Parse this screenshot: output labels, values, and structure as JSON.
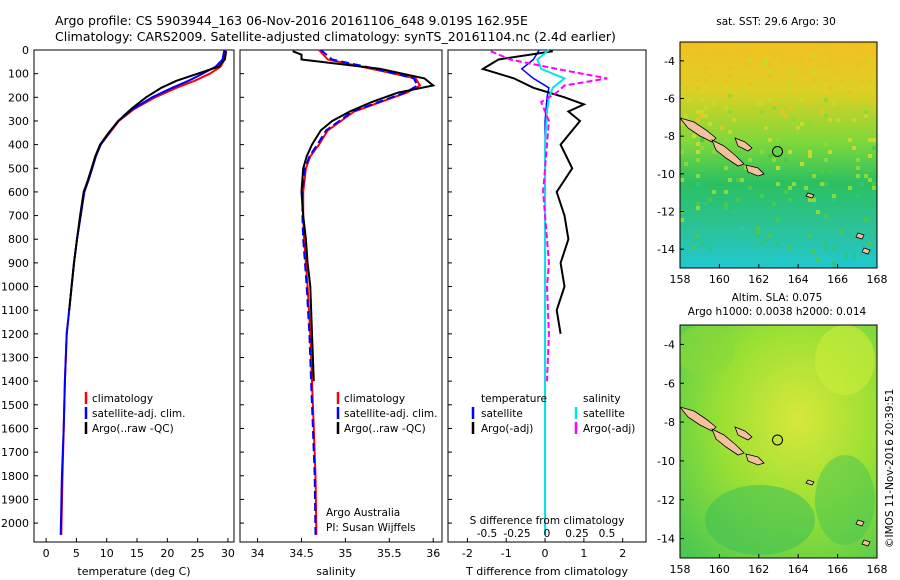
{
  "header": {
    "line1": "Argo profile: CS 5903944_163 06-Nov-2016 20161106_648 9.019S 162.95E",
    "line2": "Climatology: CARS2009. Satellite-adjusted climatology: synTS_20161104.nc (2.4d earlier)"
  },
  "colors": {
    "climatology": "#ff0000",
    "satellite": "#0000ff",
    "argo": "#000000",
    "sat_salinity": "#00e5e5",
    "argo_salinity": "#ff00ff",
    "land": "#f4c0a0"
  },
  "chart_data": [
    {
      "type": "line",
      "panel": "temperature",
      "xlabel": "temperature (deg C)",
      "ylabel": "",
      "xlim": [
        -2,
        31
      ],
      "ylim": [
        2080,
        0
      ],
      "xticks": [
        "0",
        "5",
        "10",
        "15",
        "20",
        "25",
        "30"
      ],
      "yticks": [
        "0",
        "100",
        "200",
        "300",
        "400",
        "500",
        "600",
        "700",
        "800",
        "900",
        "1000",
        "1100",
        "1200",
        "1300",
        "1400",
        "1500",
        "1600",
        "1700",
        "1800",
        "1900",
        "2000"
      ],
      "legend": [
        "climatology",
        "satellite-adj. clim.",
        "Argo(..raw -QC)"
      ],
      "series": [
        {
          "name": "climatology",
          "x": [
            29.6,
            29.4,
            28.8,
            27,
            24.5,
            21.5,
            18,
            14.5,
            12,
            10.5,
            9,
            8.2,
            7.6,
            7,
            6.3,
            5.7,
            5.1,
            4.6,
            4.2,
            3.8,
            3.4,
            3.1,
            2.9,
            2.7,
            2.5
          ],
          "y": [
            0,
            40,
            70,
            100,
            130,
            160,
            200,
            250,
            300,
            350,
            400,
            450,
            500,
            550,
            600,
            700,
            800,
            900,
            1000,
            1100,
            1200,
            1400,
            1600,
            1800,
            2050
          ]
        },
        {
          "name": "satellite-adj. clim.",
          "x": [
            29.4,
            29.1,
            28,
            25.8,
            23.5,
            20.8,
            17.5,
            14.3,
            11.9,
            10.4,
            9,
            8.2,
            7.6,
            7,
            6.3,
            5.7,
            5.1,
            4.6,
            4.2,
            3.8,
            3.4,
            3.1,
            2.9,
            2.6,
            2.4
          ],
          "y": [
            0,
            40,
            70,
            100,
            130,
            160,
            200,
            250,
            300,
            350,
            400,
            450,
            500,
            550,
            600,
            700,
            800,
            900,
            1000,
            1100,
            1200,
            1400,
            1600,
            1800,
            2050
          ]
        },
        {
          "name": "Argo(..raw -QC)",
          "x": [
            29.7,
            29.5,
            28.5,
            25,
            21.5,
            19,
            16.5,
            14,
            11.9,
            10.3,
            8.9,
            8.1,
            7.5,
            6.9,
            6.2,
            5.6,
            5.1,
            4.6,
            4.2,
            3.8
          ],
          "y": [
            5,
            40,
            70,
            100,
            130,
            160,
            200,
            250,
            300,
            350,
            400,
            450,
            500,
            550,
            600,
            700,
            800,
            900,
            1000,
            1100
          ]
        }
      ]
    },
    {
      "type": "line",
      "panel": "salinity",
      "xlabel": "salinity",
      "ylabel": "",
      "xlim": [
        33.8,
        36.1
      ],
      "ylim": [
        2080,
        0
      ],
      "xticks": [
        "34",
        "34.5",
        "35",
        "35.5",
        "36"
      ],
      "legend": [
        "climatology",
        "satellite-adj. clim.",
        "Argo(..raw -QC)"
      ],
      "annotation": [
        "Argo Australia",
        "PI: Susan Wijffels"
      ],
      "series": [
        {
          "name": "climatology",
          "x": [
            34.7,
            34.8,
            35.3,
            35.8,
            35.85,
            35.7,
            35.4,
            35.1,
            34.95,
            34.8,
            34.7,
            34.6,
            34.55,
            34.52,
            34.52,
            34.53,
            34.55,
            34.57,
            34.6,
            34.62,
            34.64,
            34.66,
            34.67
          ],
          "y": [
            0,
            40,
            80,
            120,
            150,
            180,
            220,
            260,
            300,
            340,
            400,
            450,
            500,
            600,
            700,
            800,
            900,
            1000,
            1200,
            1400,
            1600,
            1800,
            2050
          ]
        },
        {
          "name": "satellite-adj. clim.",
          "x": [
            34.72,
            34.85,
            35.35,
            35.78,
            35.82,
            35.68,
            35.38,
            35.08,
            34.93,
            34.78,
            34.68,
            34.59,
            34.54,
            34.51,
            34.51,
            34.52,
            34.54,
            34.56,
            34.59,
            34.61,
            34.63,
            34.65,
            34.66
          ],
          "y": [
            0,
            40,
            80,
            120,
            150,
            180,
            220,
            260,
            300,
            340,
            400,
            450,
            500,
            600,
            700,
            800,
            900,
            1000,
            1200,
            1400,
            1600,
            1800,
            2050
          ]
        },
        {
          "name": "Argo(..raw -QC)",
          "x": [
            34.4,
            34.5,
            34.5,
            35.4,
            35.9,
            36.0,
            35.6,
            35.3,
            35.05,
            34.85,
            34.72,
            34.62,
            34.56,
            34.52,
            34.5,
            34.52,
            34.55,
            34.57,
            34.6,
            34.62,
            34.64
          ],
          "y": [
            5,
            20,
            40,
            80,
            120,
            150,
            180,
            220,
            260,
            300,
            340,
            400,
            450,
            500,
            600,
            700,
            800,
            900,
            1000,
            1200,
            1400
          ]
        }
      ]
    },
    {
      "type": "line",
      "panel": "difference",
      "xlabel": "T difference from climatology",
      "xlabel_top": "S difference from climatology",
      "xlim": [
        -2.5,
        2.6
      ],
      "ylim": [
        2080,
        0
      ],
      "xticks": [
        "-2",
        "-1",
        "0",
        "1",
        "2"
      ],
      "xticks_top": [
        "-0.5",
        "-0.25",
        "0",
        "0.25",
        "0.5"
      ],
      "legend_left_title": "temperature",
      "legend_right_title": "salinity",
      "legend": [
        "satellite",
        "Argo(-adj)",
        "satellite",
        "Argo(-adj)"
      ],
      "series": [
        {
          "name": "temperature satellite",
          "x": [
            -0.15,
            -0.3,
            -0.6,
            -0.3,
            0.1,
            0.05,
            0,
            0,
            0,
            0,
            0
          ],
          "y": [
            0,
            40,
            80,
            120,
            160,
            200,
            300,
            500,
            1000,
            1500,
            2050
          ]
        },
        {
          "name": "temperature Argo(-adj)",
          "x": [
            0.2,
            -1.2,
            -1.6,
            -0.8,
            -0.3,
            0.5,
            1.0,
            0.6,
            0.9,
            0.4,
            0.7,
            0.3,
            0.5,
            0.6,
            0.4,
            0.5,
            0.3,
            0.4
          ],
          "y": [
            5,
            40,
            80,
            120,
            160,
            200,
            230,
            260,
            300,
            400,
            500,
            600,
            700,
            800,
            900,
            1000,
            1100,
            1200
          ]
        },
        {
          "name": "salinity satellite",
          "x": [
            0.1,
            -0.2,
            -0.1,
            0.5,
            0.2,
            0.1,
            0.05,
            0,
            0,
            0,
            0
          ],
          "y": [
            0,
            40,
            80,
            120,
            160,
            200,
            260,
            400,
            800,
            1400,
            2050
          ]
        },
        {
          "name": "salinity Argo(-adj)",
          "x": [
            -1.4,
            -0.9,
            0.3,
            1.6,
            0.5,
            0.3,
            -0.1,
            0.1,
            0.05,
            -0.05,
            0.05,
            0.1,
            0.05,
            0.1,
            0.05
          ],
          "y": [
            5,
            40,
            80,
            120,
            150,
            180,
            220,
            300,
            400,
            600,
            800,
            900,
            1000,
            1200,
            1400
          ]
        }
      ]
    },
    {
      "type": "heatmap",
      "panel": "sat SST map",
      "title": "sat. SST: 29.6 Argo: 30",
      "xlim": [
        158,
        168
      ],
      "ylim": [
        -15,
        -3
      ],
      "xticks": [
        "158",
        "160",
        "162",
        "164",
        "166",
        "168"
      ],
      "yticks": [
        "-4",
        "-6",
        "-8",
        "-10",
        "-12",
        "-14"
      ],
      "marker": {
        "lon": 162.95,
        "lat": -9.019
      }
    },
    {
      "type": "heatmap",
      "panel": "SLA map",
      "title": "Altim. SLA: 0.075",
      "subtitle": "Argo h1000: 0.0038 h2000: 0.014",
      "xlim": [
        158,
        168
      ],
      "ylim": [
        -15,
        -3
      ],
      "xticks": [
        "158",
        "160",
        "162",
        "164",
        "166",
        "168"
      ],
      "yticks": [
        "-4",
        "-6",
        "-8",
        "-10",
        "-12",
        "-14"
      ],
      "marker": {
        "lon": 162.95,
        "lat": -9.019
      }
    }
  ],
  "footer": {
    "stamp": "©IMOS 11-Nov-2016 20:39:51"
  }
}
